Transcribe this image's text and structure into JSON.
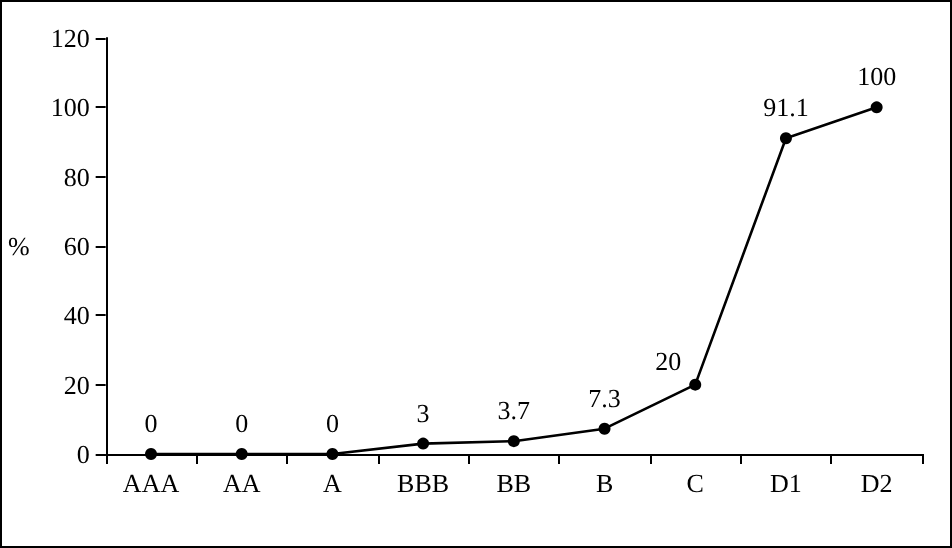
{
  "chart_data": {
    "type": "line",
    "ylabel": "%",
    "categories": [
      "AAA",
      "AA",
      "A",
      "BBB",
      "BB",
      "B",
      "C",
      "D1",
      "D2"
    ],
    "values": [
      0,
      0,
      0,
      3,
      3.7,
      7.3,
      20,
      91.1,
      100
    ],
    "color": "#000000",
    "ylim": [
      0,
      120
    ],
    "yticks": [
      0,
      20,
      40,
      60,
      80,
      100,
      120
    ],
    "grid": false,
    "marker": "circle",
    "line_style": "solid",
    "data_labels": true
  }
}
